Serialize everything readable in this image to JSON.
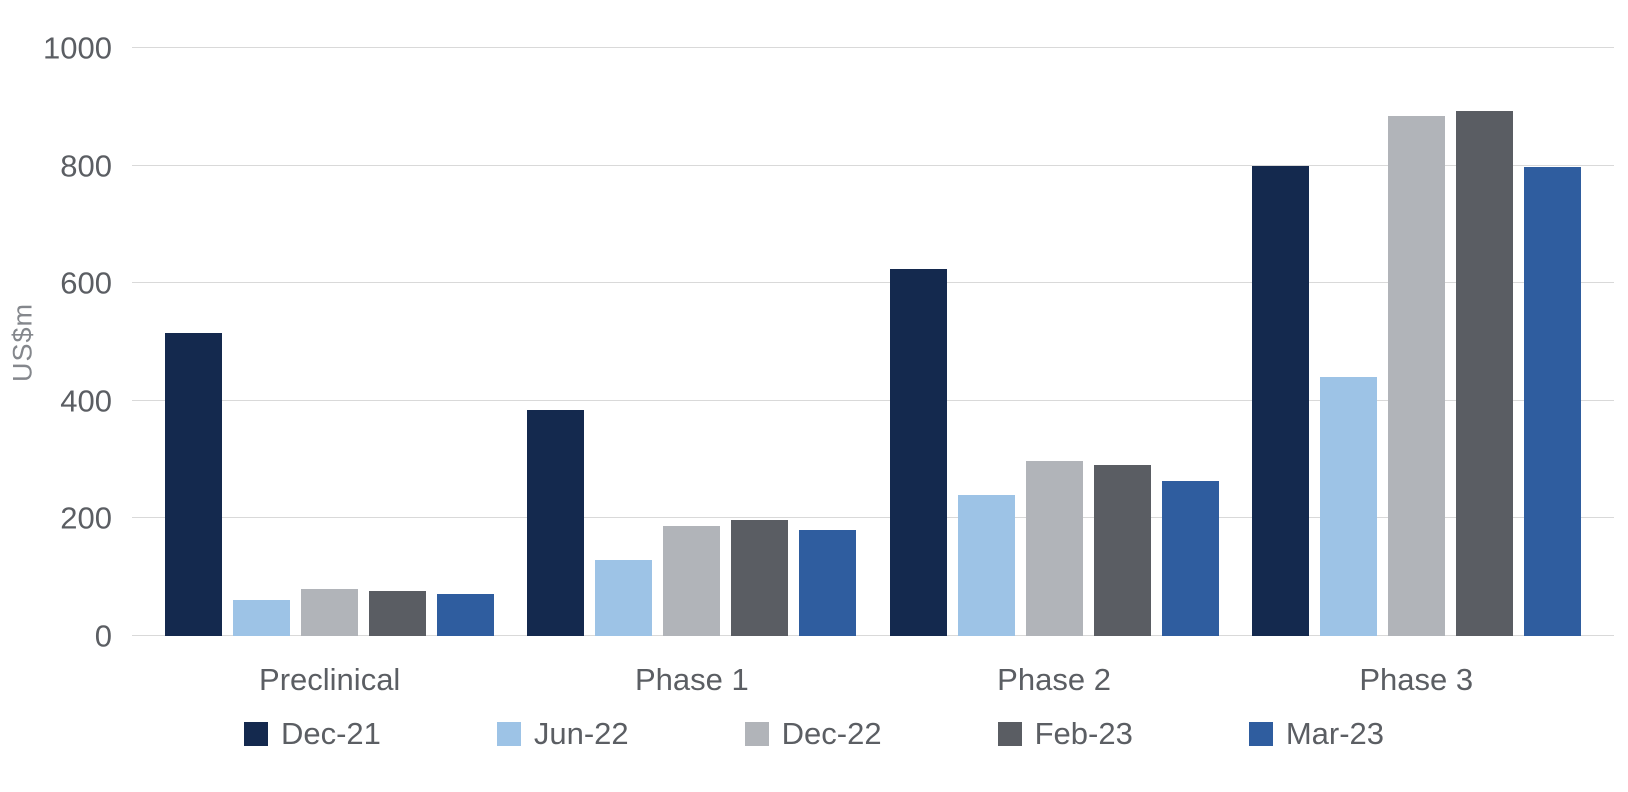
{
  "chart_data": {
    "type": "bar",
    "title": "",
    "xlabel": "",
    "ylabel": "US$m",
    "ylim": [
      0,
      1000
    ],
    "yticks": [
      0,
      200,
      400,
      600,
      800,
      1000
    ],
    "grid": true,
    "legend_position": "bottom",
    "categories": [
      "Preclinical",
      "Phase 1",
      "Phase 2",
      "Phase 3"
    ],
    "series": [
      {
        "name": "Dec-21",
        "color": "#14294e",
        "values": [
          515,
          385,
          625,
          800
        ]
      },
      {
        "name": "Jun-22",
        "color": "#9dc3e6",
        "values": [
          62,
          130,
          240,
          440
        ]
      },
      {
        "name": "Dec-22",
        "color": "#b1b4b9",
        "values": [
          80,
          187,
          297,
          885
        ]
      },
      {
        "name": "Feb-23",
        "color": "#5a5d63",
        "values": [
          76,
          197,
          290,
          893
        ]
      },
      {
        "name": "Mar-23",
        "color": "#2f5d9f",
        "values": [
          72,
          181,
          263,
          797
        ]
      }
    ]
  },
  "colors": {
    "background": "#ffffff",
    "grid": "#d9d9d9",
    "axis_text": "#5b5e63",
    "axis_title": "#84878c"
  }
}
